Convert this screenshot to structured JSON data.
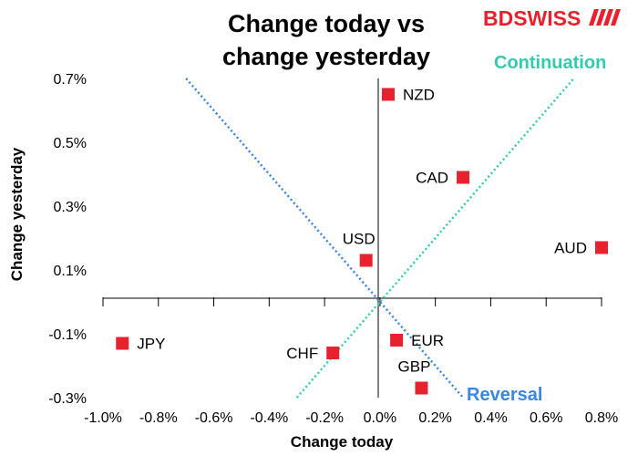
{
  "brand": {
    "logo_text": "BDSWISS"
  },
  "chart_data": {
    "type": "scatter",
    "title_lines": [
      "Change today vs",
      "change yesterday"
    ],
    "xlabel": "Change today",
    "ylabel": "Change yesterday",
    "xlim": [
      -1.0,
      0.8
    ],
    "ylim": [
      -0.3,
      0.7
    ],
    "x_ticks": [
      -1.0,
      -0.8,
      -0.6,
      -0.4,
      -0.2,
      0.0,
      0.2,
      0.4,
      0.6,
      0.8
    ],
    "x_tick_labels": [
      "-1.0%",
      "-0.8%",
      "-0.6%",
      "-0.4%",
      "-0.2%",
      "0.0%",
      "0.2%",
      "0.4%",
      "0.6%",
      "0.8%"
    ],
    "y_ticks": [
      0.7,
      0.5,
      0.3,
      0.1,
      -0.1,
      -0.3
    ],
    "y_tick_labels": [
      "0.7%",
      "0.5%",
      "0.3%",
      "0.1%",
      "-0.1%",
      "-0.3%"
    ],
    "marker_color": "#e8212e",
    "points": [
      {
        "label": "NZD",
        "x": 0.03,
        "y": 0.65,
        "label_pos": "right"
      },
      {
        "label": "CAD",
        "x": 0.3,
        "y": 0.39,
        "label_pos": "left"
      },
      {
        "label": "AUD",
        "x": 0.8,
        "y": 0.17,
        "label_pos": "left"
      },
      {
        "label": "USD",
        "x": -0.05,
        "y": 0.13,
        "label_pos": "above"
      },
      {
        "label": "EUR",
        "x": 0.06,
        "y": -0.12,
        "label_pos": "right"
      },
      {
        "label": "CHF",
        "x": -0.17,
        "y": -0.16,
        "label_pos": "left"
      },
      {
        "label": "GBP",
        "x": 0.15,
        "y": -0.27,
        "label_pos": "above"
      },
      {
        "label": "JPY",
        "x": -0.93,
        "y": -0.13,
        "label_pos": "right"
      }
    ],
    "reference_lines": [
      {
        "name": "Continuation",
        "color": "#33ccaa",
        "from": [
          -0.3,
          -0.3
        ],
        "to": [
          0.7,
          0.7
        ]
      },
      {
        "name": "Reversal",
        "color": "#3a86e0",
        "from": [
          -0.7,
          0.7
        ],
        "to": [
          0.3,
          -0.3
        ]
      }
    ],
    "annotations": [
      {
        "text": "Continuation",
        "color": "#33ccaa"
      },
      {
        "text": "Reversal",
        "color": "#3a86e0"
      }
    ],
    "grid": false,
    "legend": "none"
  }
}
